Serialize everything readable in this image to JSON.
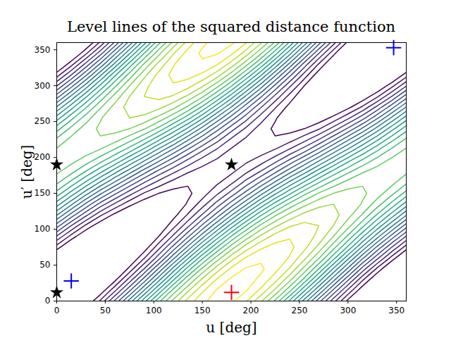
{
  "chart_data": {
    "type": "contour",
    "title": "Level lines of the squared distance function",
    "xlabel": "u [deg]",
    "ylabel": "u′ [deg]",
    "xlim": [
      0,
      360
    ],
    "ylim": [
      0,
      360
    ],
    "xticks": [
      0,
      50,
      100,
      150,
      200,
      250,
      300,
      350
    ],
    "yticks": [
      0,
      50,
      100,
      150,
      200,
      250,
      300,
      350
    ],
    "color": "viridis",
    "levels": [
      0.45,
      0.55,
      0.65,
      0.75,
      0.85,
      0.95,
      1.05,
      1.15,
      1.25,
      1.35,
      1.45,
      1.55,
      1.65,
      1.75,
      1.85,
      1.95,
      2.05,
      2.15,
      2.25,
      2.35,
      2.45
    ],
    "grid_x": [
      -15,
      0,
      15,
      30,
      45,
      60,
      75,
      90,
      105,
      120,
      135,
      150,
      165,
      180,
      195,
      210,
      225,
      240,
      255,
      270,
      285,
      300,
      315,
      330,
      345,
      360,
      375
    ],
    "grid_y": [
      -15,
      0,
      15,
      30,
      45,
      60,
      75,
      90,
      105,
      120,
      135,
      150,
      165,
      180,
      195,
      210,
      225,
      240,
      255,
      270,
      285,
      300,
      315,
      330,
      345,
      360,
      375
    ],
    "z": [
      [
        0.04,
        0.13,
        0.3,
        0.53,
        0.81,
        1.13,
        1.44,
        1.75,
        2.02,
        2.24,
        2.39,
        2.47,
        2.46,
        2.37,
        2.2,
        1.97,
        1.69,
        1.38,
        1.06,
        0.75,
        0.48,
        0.26,
        0.11,
        0.03,
        0.04,
        0.13,
        0.3
      ],
      [
        0.01,
        0.03,
        0.14,
        0.33,
        0.57,
        0.87,
        1.19,
        1.51,
        1.82,
        2.08,
        2.29,
        2.43,
        2.49,
        2.47,
        2.36,
        2.17,
        1.93,
        1.63,
        1.31,
        0.99,
        0.69,
        0.42,
        0.21,
        0.07,
        0.01,
        0.03,
        0.14
      ],
      [
        0.04,
        0,
        0.04,
        0.17,
        0.37,
        0.63,
        0.93,
        1.25,
        1.57,
        1.88,
        2.13,
        2.33,
        2.46,
        2.5,
        2.46,
        2.33,
        2.13,
        1.88,
        1.57,
        1.25,
        0.93,
        0.63,
        0.37,
        0.17,
        0.04,
        0,
        0.04
      ],
      [
        0.14,
        0.03,
        0.01,
        0.07,
        0.21,
        0.42,
        0.69,
        0.99,
        1.31,
        1.63,
        1.93,
        2.17,
        2.36,
        2.47,
        2.49,
        2.43,
        2.29,
        2.08,
        1.82,
        1.51,
        1.19,
        0.87,
        0.57,
        0.33,
        0.14,
        0.03,
        0.01
      ],
      [
        0.3,
        0.13,
        0.04,
        0.03,
        0.11,
        0.26,
        0.48,
        0.75,
        1.06,
        1.38,
        1.69,
        1.97,
        2.2,
        2.37,
        2.46,
        2.47,
        2.39,
        2.24,
        2.02,
        1.75,
        1.44,
        1.13,
        0.81,
        0.53,
        0.3,
        0.13,
        0.04
      ],
      [
        0.51,
        0.29,
        0.14,
        0.07,
        0.07,
        0.16,
        0.32,
        0.54,
        0.81,
        1.12,
        1.43,
        1.73,
        1.99,
        2.21,
        2.36,
        2.43,
        2.43,
        2.34,
        2.18,
        1.96,
        1.69,
        1.38,
        1.07,
        0.78,
        0.51,
        0.29,
        0.14
      ],
      [
        0.75,
        0.5,
        0.3,
        0.17,
        0.11,
        0.13,
        0.22,
        0.38,
        0.61,
        0.88,
        1.17,
        1.47,
        1.75,
        2.0,
        2.2,
        2.33,
        2.39,
        2.38,
        2.28,
        2.12,
        1.89,
        1.63,
        1.33,
        1.03,
        0.75,
        0.5,
        0.3
      ],
      [
        1.01,
        0.74,
        0.51,
        0.33,
        0.21,
        0.16,
        0.19,
        0.28,
        0.45,
        0.67,
        0.93,
        1.21,
        1.49,
        1.76,
        1.99,
        2.17,
        2.29,
        2.34,
        2.31,
        2.22,
        2.05,
        1.83,
        1.57,
        1.29,
        1.01,
        0.74,
        0.51
      ],
      [
        1.27,
        1.0,
        0.75,
        0.53,
        0.37,
        0.26,
        0.22,
        0.25,
        0.35,
        0.51,
        0.72,
        0.97,
        1.23,
        1.5,
        1.75,
        1.97,
        2.13,
        2.24,
        2.28,
        2.25,
        2.15,
        1.99,
        1.78,
        1.53,
        1.27,
        1.0,
        0.75
      ],
      [
        1.51,
        1.26,
        1.01,
        0.78,
        0.57,
        0.42,
        0.32,
        0.28,
        0.31,
        0.41,
        0.56,
        0.76,
        0.99,
        1.24,
        1.49,
        1.73,
        1.93,
        2.08,
        2.18,
        2.22,
        2.19,
        2.09,
        1.94,
        1.74,
        1.51,
        1.26,
        1.01
      ],
      [
        1.72,
        1.5,
        1.27,
        1.03,
        0.81,
        0.63,
        0.48,
        0.38,
        0.35,
        0.38,
        0.46,
        0.6,
        0.79,
        1.0,
        1.23,
        1.47,
        1.69,
        1.88,
        2.02,
        2.12,
        2.15,
        2.13,
        2.04,
        1.9,
        1.72,
        1.5,
        1.27
      ],
      [
        1.88,
        1.71,
        1.51,
        1.29,
        1.07,
        0.87,
        0.69,
        0.54,
        0.45,
        0.41,
        0.43,
        0.5,
        0.63,
        0.79,
        0.99,
        1.21,
        1.43,
        1.63,
        1.82,
        1.96,
        2.05,
        2.09,
        2.07,
        2.0,
        1.88,
        1.71,
        1.51
      ],
      [
        1.98,
        1.87,
        1.72,
        1.53,
        1.33,
        1.13,
        0.93,
        0.75,
        0.61,
        0.51,
        0.46,
        0.47,
        0.53,
        0.63,
        0.79,
        0.97,
        1.17,
        1.38,
        1.57,
        1.75,
        1.89,
        1.99,
        2.04,
        2.03,
        1.98,
        1.87,
        1.72
      ],
      [
        2.01,
        1.97,
        1.88,
        1.74,
        1.57,
        1.38,
        1.19,
        0.99,
        0.81,
        0.67,
        0.56,
        0.5,
        0.49,
        0.53,
        0.63,
        0.76,
        0.93,
        1.12,
        1.31,
        1.51,
        1.69,
        1.83,
        1.94,
        2.0,
        2.01,
        1.97,
        1.88
      ],
      [
        1.98,
        2.0,
        1.98,
        1.9,
        1.78,
        1.63,
        1.44,
        1.25,
        1.06,
        0.88,
        0.72,
        0.6,
        0.53,
        0.5,
        0.53,
        0.6,
        0.72,
        0.88,
        1.06,
        1.25,
        1.44,
        1.63,
        1.78,
        1.9,
        1.98,
        2.0,
        1.98
      ],
      [
        1.88,
        1.97,
        2.01,
        2.0,
        1.94,
        1.83,
        1.69,
        1.51,
        1.31,
        1.12,
        0.93,
        0.76,
        0.63,
        0.53,
        0.49,
        0.5,
        0.56,
        0.67,
        0.81,
        0.99,
        1.19,
        1.38,
        1.57,
        1.74,
        1.88,
        1.97,
        2.01
      ],
      [
        1.72,
        1.87,
        1.98,
        2.03,
        2.04,
        1.99,
        1.89,
        1.75,
        1.57,
        1.38,
        1.17,
        0.97,
        0.79,
        0.63,
        0.53,
        0.47,
        0.46,
        0.51,
        0.61,
        0.75,
        0.93,
        1.13,
        1.33,
        1.53,
        1.72,
        1.87,
        1.98
      ],
      [
        1.51,
        1.71,
        1.88,
        2.0,
        2.07,
        2.09,
        2.05,
        1.96,
        1.82,
        1.63,
        1.43,
        1.21,
        0.99,
        0.79,
        0.63,
        0.5,
        0.43,
        0.41,
        0.45,
        0.54,
        0.69,
        0.87,
        1.07,
        1.29,
        1.51,
        1.71,
        1.88
      ],
      [
        1.27,
        1.5,
        1.72,
        1.9,
        2.04,
        2.13,
        2.15,
        2.12,
        2.02,
        1.88,
        1.69,
        1.47,
        1.23,
        1.0,
        0.79,
        0.6,
        0.46,
        0.38,
        0.35,
        0.38,
        0.48,
        0.63,
        0.81,
        1.03,
        1.27,
        1.5,
        1.72
      ],
      [
        1.01,
        1.26,
        1.51,
        1.74,
        1.94,
        2.09,
        2.19,
        2.22,
        2.18,
        2.08,
        1.93,
        1.73,
        1.49,
        1.24,
        0.99,
        0.76,
        0.56,
        0.41,
        0.31,
        0.28,
        0.32,
        0.42,
        0.57,
        0.78,
        1.01,
        1.26,
        1.51
      ],
      [
        0.75,
        1.0,
        1.27,
        1.53,
        1.78,
        1.99,
        2.15,
        2.25,
        2.28,
        2.24,
        2.13,
        1.97,
        1.75,
        1.5,
        1.23,
        0.97,
        0.72,
        0.51,
        0.35,
        0.25,
        0.22,
        0.26,
        0.37,
        0.53,
        0.75,
        1.0,
        1.27
      ],
      [
        0.51,
        0.74,
        1.01,
        1.29,
        1.57,
        1.83,
        2.05,
        2.22,
        2.31,
        2.34,
        2.29,
        2.17,
        1.99,
        1.76,
        1.49,
        1.21,
        0.93,
        0.67,
        0.45,
        0.28,
        0.19,
        0.16,
        0.21,
        0.33,
        0.51,
        0.74,
        1.01
      ],
      [
        0.3,
        0.5,
        0.75,
        1.03,
        1.33,
        1.63,
        1.89,
        2.12,
        2.28,
        2.38,
        2.39,
        2.33,
        2.2,
        2.0,
        1.75,
        1.47,
        1.17,
        0.88,
        0.61,
        0.38,
        0.22,
        0.13,
        0.11,
        0.17,
        0.3,
        0.5,
        0.75
      ],
      [
        0.14,
        0.29,
        0.51,
        0.78,
        1.07,
        1.38,
        1.69,
        1.96,
        2.18,
        2.34,
        2.43,
        2.43,
        2.36,
        2.21,
        1.99,
        1.73,
        1.43,
        1.12,
        0.81,
        0.54,
        0.32,
        0.16,
        0.07,
        0.07,
        0.14,
        0.29,
        0.51
      ],
      [
        0.04,
        0.13,
        0.3,
        0.53,
        0.81,
        1.13,
        1.44,
        1.75,
        2.02,
        2.24,
        2.39,
        2.47,
        2.46,
        2.37,
        2.2,
        1.97,
        1.69,
        1.38,
        1.06,
        0.75,
        0.48,
        0.26,
        0.11,
        0.03,
        0.04,
        0.13,
        0.3
      ],
      [
        0.01,
        0.03,
        0.14,
        0.33,
        0.57,
        0.87,
        1.19,
        1.51,
        1.82,
        2.08,
        2.29,
        2.43,
        2.49,
        2.47,
        2.36,
        2.17,
        1.93,
        1.63,
        1.31,
        0.99,
        0.69,
        0.42,
        0.21,
        0.07,
        0.01,
        0.03,
        0.14
      ],
      [
        0.04,
        0,
        0.04,
        0.17,
        0.37,
        0.63,
        0.93,
        1.25,
        1.57,
        1.88,
        2.13,
        2.33,
        2.46,
        2.5,
        2.46,
        2.33,
        2.13,
        1.88,
        1.57,
        1.25,
        0.93,
        0.63,
        0.37,
        0.17,
        0.04,
        0,
        0.04
      ]
    ],
    "series": [
      {
        "color": "black",
        "marker": "star",
        "x": [
          0,
          0,
          180
        ],
        "y": [
          12,
          190,
          190
        ]
      },
      {
        "color": "blue",
        "marker": "plus",
        "x": [
          15,
          347
        ],
        "y": [
          28,
          353
        ]
      },
      {
        "color": "red",
        "marker": "plus",
        "x": [
          180
        ],
        "y": [
          12
        ]
      }
    ]
  }
}
